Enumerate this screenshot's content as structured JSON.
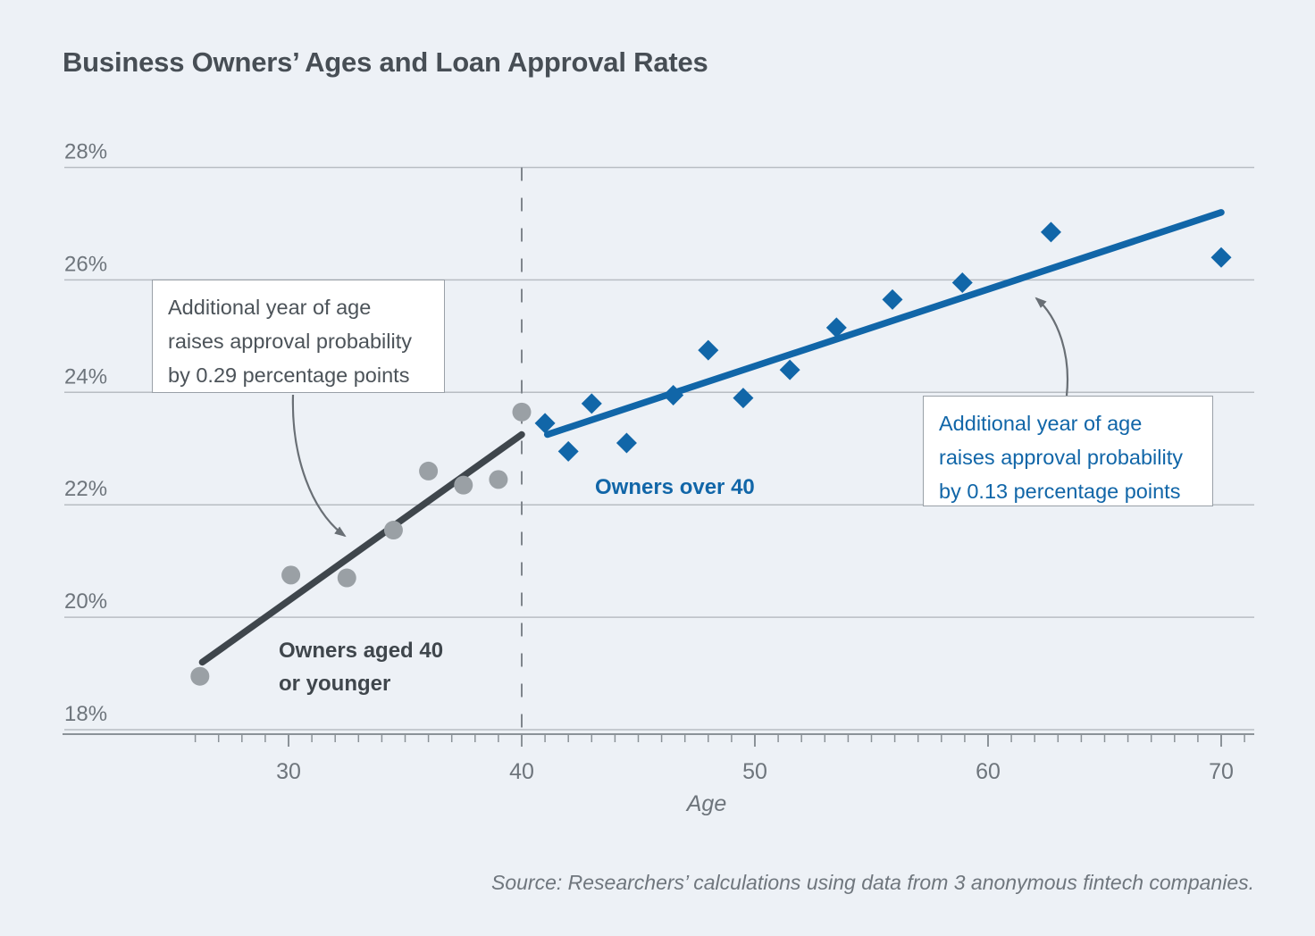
{
  "source": "Source: Researchers’ calculations using data from 3 anonymous fintech companies.",
  "chart_data": {
    "type": "scatter",
    "title": "Business Owners’ Ages and Loan Approval Rates",
    "xlabel": "Age",
    "ylabel": "",
    "xlim": [
      20.5,
      71.5
    ],
    "ylim": [
      18,
      28
    ],
    "grid": "horizontal",
    "legend_position": "none",
    "x_ticks": [
      {
        "v": 30,
        "label": "30"
      },
      {
        "v": 40,
        "label": "40"
      },
      {
        "v": 50,
        "label": "50"
      },
      {
        "v": 60,
        "label": "60"
      },
      {
        "v": 70,
        "label": "70"
      }
    ],
    "x_minor_tick_range": [
      26,
      71
    ],
    "y_ticks": [
      {
        "v": 28,
        "label": "28%"
      },
      {
        "v": 26,
        "label": "26%"
      },
      {
        "v": 24,
        "label": "24%"
      },
      {
        "v": 22,
        "label": "22%"
      },
      {
        "v": 20,
        "label": "20%"
      },
      {
        "v": 18,
        "label": "18%"
      }
    ],
    "divider_age": 40,
    "series": [
      {
        "name": "Owners aged 40 or younger",
        "marker": "circle",
        "color": "#9aa0a5",
        "label_lines": [
          "Owners aged 40",
          "or younger"
        ],
        "points": [
          [
            26.2,
            18.95
          ],
          [
            30.1,
            20.75
          ],
          [
            32.5,
            20.7
          ],
          [
            34.5,
            21.55
          ],
          [
            36.0,
            22.6
          ],
          [
            37.5,
            22.35
          ],
          [
            39.0,
            22.45
          ],
          [
            40.0,
            23.65
          ]
        ],
        "trend_line": {
          "from": [
            26.3,
            19.2
          ],
          "to": [
            40.0,
            23.25
          ],
          "color": "#3f464c",
          "slope_pp_per_year": 0.29
        }
      },
      {
        "name": "Owners over 40",
        "marker": "diamond",
        "color": "#1166a8",
        "label_lines": [
          "Owners over 40"
        ],
        "points": [
          [
            41.0,
            23.45
          ],
          [
            42.0,
            22.95
          ],
          [
            43.0,
            23.8
          ],
          [
            44.5,
            23.1
          ],
          [
            46.5,
            23.95
          ],
          [
            48.0,
            24.75
          ],
          [
            49.5,
            23.9
          ],
          [
            51.5,
            24.4
          ],
          [
            53.5,
            25.15
          ],
          [
            55.9,
            25.65
          ],
          [
            58.9,
            25.95
          ],
          [
            62.7,
            26.85
          ],
          [
            70.0,
            26.4
          ]
        ],
        "trend_line": {
          "from": [
            41.1,
            23.25
          ],
          "to": [
            70.0,
            27.2
          ],
          "color": "#1166a8",
          "slope_pp_per_year": 0.13
        }
      }
    ],
    "annotations": [
      {
        "target": "young",
        "lines": [
          "Additional year of age",
          "raises approval probability",
          "by 0.29 percentage points"
        ]
      },
      {
        "target": "old",
        "lines": [
          "Additional year of age",
          "raises approval probability",
          "by 0.13 percentage points"
        ]
      }
    ]
  },
  "colors": {
    "background": "#edf1f6",
    "gridline": "#b8bdc3",
    "axis": "#8b9298",
    "tick_label": "#6e757c",
    "dashed_divider": "#7f858c",
    "young_marker": "#9aa0a5",
    "young_trend": "#3f464c",
    "old_blue": "#1166a8",
    "annotation_arrow": "#696f75",
    "box_border": "#99a0a7",
    "title_text": "#474e55"
  }
}
